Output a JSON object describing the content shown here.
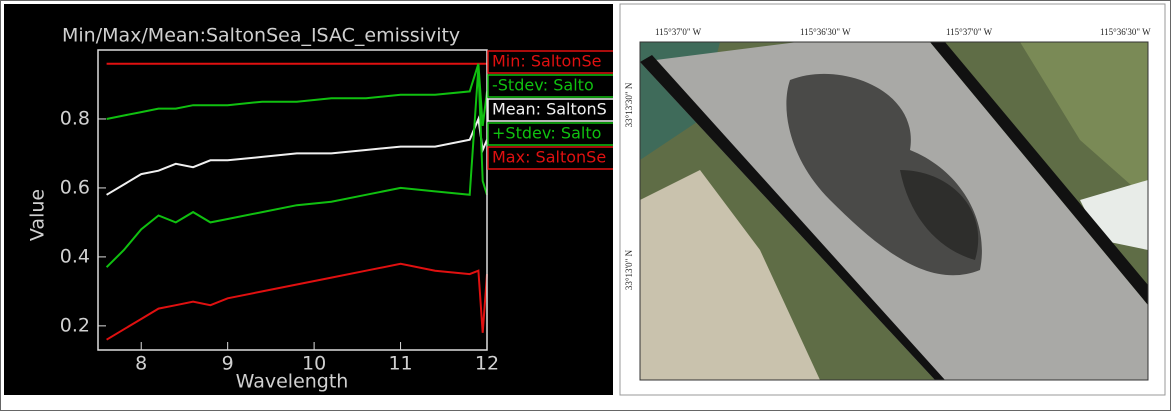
{
  "chart_data": {
    "type": "line",
    "title": "Min/Max/Mean:SaltonSea_ISAC_emissivity",
    "x_label": "Wavelength",
    "y_label": "Value",
    "x": [
      7.6,
      7.8,
      8.0,
      8.2,
      8.4,
      8.6,
      8.8,
      9.0,
      9.4,
      9.8,
      10.2,
      10.6,
      11.0,
      11.4,
      11.8,
      11.9,
      11.95,
      12.0
    ],
    "series": [
      {
        "name": "Min: SaltonSe",
        "color": "#e01010",
        "values": [
          0.96,
          0.96,
          0.96,
          0.96,
          0.96,
          0.96,
          0.96,
          0.96,
          0.96,
          0.96,
          0.96,
          0.96,
          0.96,
          0.96,
          0.96,
          0.96,
          0.96,
          0.96
        ]
      },
      {
        "name": "-Stdev: Salto",
        "color": "#10c010",
        "values": [
          0.8,
          0.81,
          0.82,
          0.83,
          0.83,
          0.84,
          0.84,
          0.84,
          0.85,
          0.85,
          0.86,
          0.86,
          0.87,
          0.87,
          0.88,
          0.96,
          0.78,
          0.88
        ]
      },
      {
        "name": "Mean: SaltonS",
        "color": "#f0f0f0",
        "values": [
          0.58,
          0.61,
          0.64,
          0.65,
          0.67,
          0.66,
          0.68,
          0.68,
          0.69,
          0.7,
          0.7,
          0.71,
          0.72,
          0.72,
          0.74,
          0.8,
          0.71,
          0.74
        ]
      },
      {
        "name": "+Stdev: Salto",
        "color": "#10c010",
        "values": [
          0.37,
          0.42,
          0.48,
          0.52,
          0.5,
          0.53,
          0.5,
          0.51,
          0.53,
          0.55,
          0.56,
          0.58,
          0.6,
          0.59,
          0.58,
          0.95,
          0.62,
          0.58
        ]
      },
      {
        "name": "Max: SaltonSe",
        "color": "#e01010",
        "values": [
          0.16,
          0.19,
          0.22,
          0.25,
          0.26,
          0.27,
          0.26,
          0.28,
          0.3,
          0.32,
          0.34,
          0.36,
          0.38,
          0.36,
          0.35,
          0.36,
          0.18,
          0.35
        ]
      }
    ],
    "xlim": [
      7.5,
      12
    ],
    "xticks": [
      8,
      9,
      10,
      11,
      12
    ],
    "ylim": [
      0.13,
      1.0
    ],
    "yticks": [
      0.2,
      0.4,
      0.6,
      0.8
    ]
  },
  "map": {
    "top_labels": [
      "115°37'0\" W",
      "115°36'30\" W",
      "115°37'0\" W",
      "115°36'30\" W"
    ],
    "left_labels": [
      "33°13'30\" N",
      "33°13'0\" N"
    ]
  }
}
